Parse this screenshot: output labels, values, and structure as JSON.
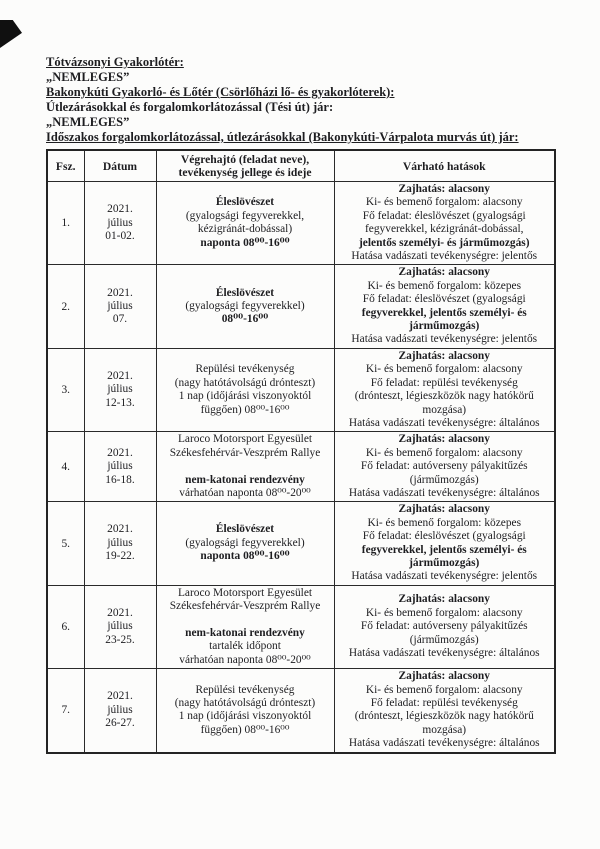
{
  "colors": {
    "ink": "#1d1d20",
    "border": "#2a2a2a",
    "paper": "#fcfcfb"
  },
  "intro": {
    "site1_title": "Tótvázsonyi Gyakorlótér:",
    "site1_status": "„NEMLEGES”",
    "site2_title": "Bakonykúti Gyakorló- és Lőtér (Csörlőházi lő- és gyakorlóterek):",
    "road_note": "Útlezárásokkal és forgalomkorlátozással (Tési út) jár:",
    "road_note_status": "„NEMLEGES”",
    "table_caption": "Időszakos forgalomkorlátozással, útlezárásokkal (Bakonykúti-Várpalota murvás út) jár:"
  },
  "table": {
    "headers": {
      "col1": "Fsz.",
      "col2": "Dátum",
      "col3_line1": "Végrehajtó (feladat neve),",
      "col3_line2": "tevékenység jellege és ideje",
      "col4": "Várható hatások"
    },
    "rows": [
      {
        "num": "1.",
        "date": [
          "2021.",
          "július",
          "01-02."
        ],
        "task": [
          {
            "t": "Éleslövészet",
            "b": true
          },
          {
            "t": "(gyalogsági fegyverekkel,"
          },
          {
            "t": "kézigránát-dobással)"
          },
          {
            "t": "naponta 08⁰⁰-16⁰⁰",
            "b": true
          }
        ],
        "effects": [
          {
            "t": "Zajhatás: alacsony",
            "b": true
          },
          {
            "t": "Ki- és bemenő forgalom: alacsony"
          },
          {
            "t": "Fő feladat: éleslövészet (gyalogsági"
          },
          {
            "t": "fegyverekkel, kézigránát-dobással,"
          },
          {
            "t": "jelentős személyi- és járműmozgás)",
            "b": true
          },
          {
            "t": "Hatása vadászati tevékenységre: jelentős"
          }
        ]
      },
      {
        "num": "2.",
        "date": [
          "2021.",
          "július",
          "07."
        ],
        "task": [
          {
            "t": "Éleslövészet",
            "b": true
          },
          {
            "t": "(gyalogsági fegyverekkel)"
          },
          {
            "t": "08⁰⁰-16⁰⁰",
            "b": true
          }
        ],
        "effects": [
          {
            "t": "Zajhatás: alacsony",
            "b": true
          },
          {
            "t": "Ki- és bemenő forgalom: közepes"
          },
          {
            "t": "Fő feladat: éleslövészet (gyalogsági"
          },
          {
            "t": "fegyverekkel, jelentős személyi- és",
            "b": true
          },
          {
            "t": "járműmozgás)",
            "b": true
          },
          {
            "t": "Hatása vadászati tevékenységre: jelentős"
          }
        ]
      },
      {
        "num": "3.",
        "date": [
          "2021.",
          "július",
          "12-13."
        ],
        "task": [
          {
            "t": "Repülési tevékenység"
          },
          {
            "t": "(nagy hatótávolságú drónteszt)"
          },
          {
            "t": "1 nap (időjárási viszonyoktól"
          },
          {
            "t": "függően) 08⁰⁰-16⁰⁰"
          }
        ],
        "effects": [
          {
            "t": "Zajhatás: alacsony",
            "b": true
          },
          {
            "t": "Ki- és bemenő forgalom: alacsony"
          },
          {
            "t": "Fő feladat: repülési tevékenység"
          },
          {
            "t": "(drónteszt, légieszközök nagy hatókörű"
          },
          {
            "t": "mozgása)"
          },
          {
            "t": "Hatása vadászati tevékenységre: általános"
          }
        ]
      },
      {
        "num": "4.",
        "date": [
          "2021.",
          "július",
          "16-18."
        ],
        "task": [
          {
            "t": "Laroco Motorsport Egyesület"
          },
          {
            "t": "Székesfehérvár-Veszprém Rallye"
          },
          {
            "t": ""
          },
          {
            "t": "nem-katonai rendezvény",
            "b": true
          },
          {
            "t": "várhatóan naponta 08⁰⁰-20⁰⁰"
          }
        ],
        "effects": [
          {
            "t": "Zajhatás: alacsony",
            "b": true
          },
          {
            "t": "Ki- és bemenő forgalom: alacsony"
          },
          {
            "t": "Fő feladat: autóverseny pályakitűzés"
          },
          {
            "t": "(járműmozgás)"
          },
          {
            "t": "Hatása vadászati tevékenységre: általános"
          }
        ]
      },
      {
        "num": "5.",
        "date": [
          "2021.",
          "július",
          "19-22."
        ],
        "task": [
          {
            "t": "Éleslövészet",
            "b": true
          },
          {
            "t": "(gyalogsági fegyverekkel)"
          },
          {
            "t": "naponta 08⁰⁰-16⁰⁰",
            "b": true
          }
        ],
        "effects": [
          {
            "t": "Zajhatás: alacsony",
            "b": true
          },
          {
            "t": "Ki- és bemenő forgalom: közepes"
          },
          {
            "t": "Fő feladat: éleslövészet (gyalogsági"
          },
          {
            "t": "fegyverekkel, jelentős személyi- és",
            "b": true
          },
          {
            "t": "járműmozgás)",
            "b": true
          },
          {
            "t": "Hatása vadászati tevékenységre: jelentős"
          }
        ]
      },
      {
        "num": "6.",
        "date": [
          "2021.",
          "július",
          "23-25."
        ],
        "task": [
          {
            "t": "Laroco Motorsport Egyesület"
          },
          {
            "t": "Székesfehérvár-Veszprém Rallye"
          },
          {
            "t": ""
          },
          {
            "t": "nem-katonai rendezvény",
            "b": true
          },
          {
            "t": "tartalék időpont"
          },
          {
            "t": "várhatóan naponta 08⁰⁰-20⁰⁰"
          }
        ],
        "effects": [
          {
            "t": "Zajhatás: alacsony",
            "b": true
          },
          {
            "t": "Ki- és bemenő forgalom: alacsony"
          },
          {
            "t": "Fő feladat: autóverseny pályakitűzés"
          },
          {
            "t": "(járműmozgás)"
          },
          {
            "t": "Hatása vadászati tevékenységre: általános"
          }
        ]
      },
      {
        "num": "7.",
        "date": [
          "2021.",
          "július",
          "26-27."
        ],
        "task": [
          {
            "t": "Repülési tevékenység"
          },
          {
            "t": "(nagy hatótávolságú drónteszt)"
          },
          {
            "t": "1 nap (időjárási viszonyoktól"
          },
          {
            "t": "függően) 08⁰⁰-16⁰⁰"
          }
        ],
        "effects": [
          {
            "t": "Zajhatás: alacsony",
            "b": true
          },
          {
            "t": "Ki- és bemenő forgalom: alacsony"
          },
          {
            "t": "Fő feladat: repülési tevékenység"
          },
          {
            "t": "(drónteszt, légieszközök nagy hatókörű"
          },
          {
            "t": "mozgása)"
          },
          {
            "t": "Hatása vadászati tevékenységre: általános"
          }
        ]
      }
    ]
  }
}
